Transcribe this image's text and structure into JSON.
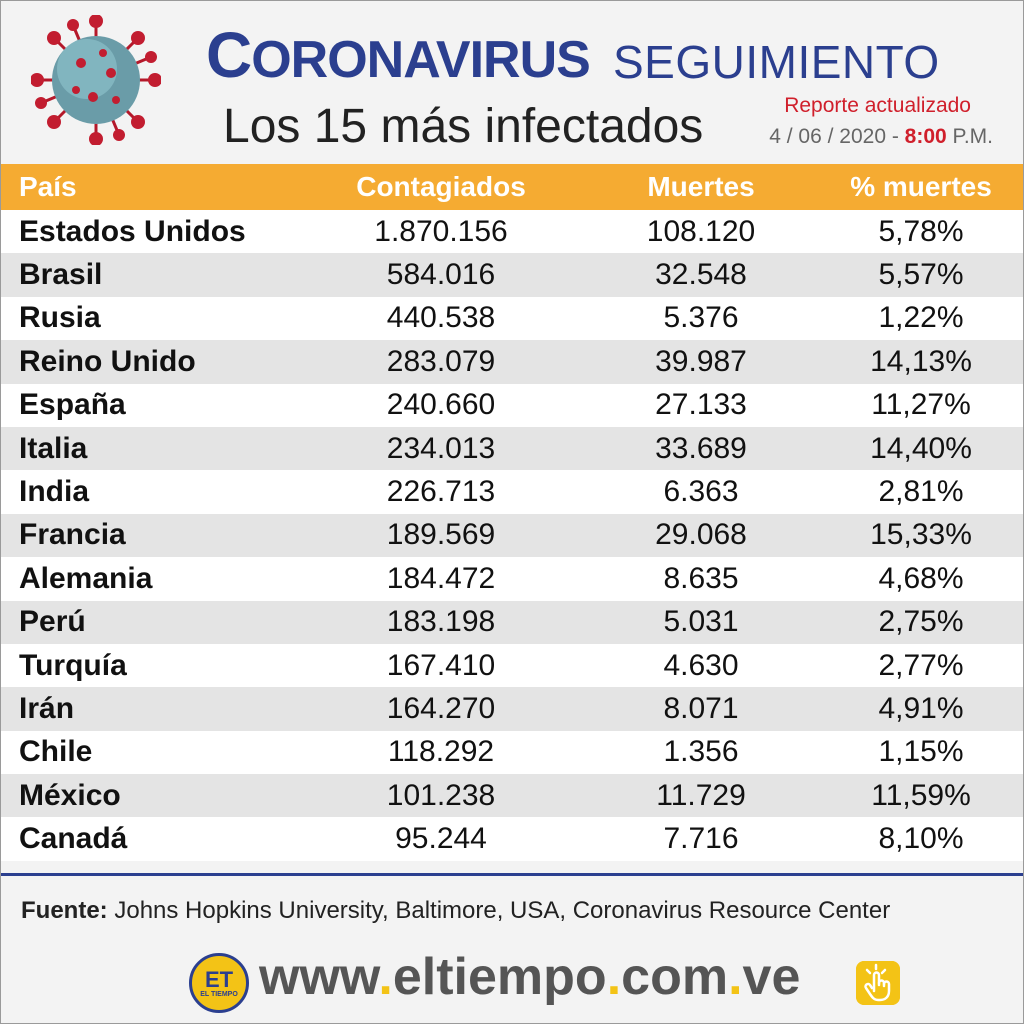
{
  "header": {
    "title_first_letter": "C",
    "title_rest": "ORONAVIRUS",
    "title_second": "SEGUIMIENTO",
    "subtitle": "Los 15 más infectados",
    "report_label": "Reporte actualizado",
    "report_date": "4 / 06 / 2020 - ",
    "report_time": "8:00",
    "report_ampm": " P.M."
  },
  "table": {
    "headers": [
      "País",
      "Contagiados",
      "Muertes",
      "% muertes"
    ],
    "rows": [
      [
        "Estados Unidos",
        "1.870.156",
        "108.120",
        "5,78%"
      ],
      [
        "Brasil",
        "584.016",
        "32.548",
        "5,57%"
      ],
      [
        "Rusia",
        "440.538",
        "5.376",
        "1,22%"
      ],
      [
        "Reino Unido",
        "283.079",
        "39.987",
        "14,13%"
      ],
      [
        "España",
        "240.660",
        "27.133",
        "11,27%"
      ],
      [
        "Italia",
        "234.013",
        "33.689",
        "14,40%"
      ],
      [
        "India",
        "226.713",
        "6.363",
        "2,81%"
      ],
      [
        "Francia",
        "189.569",
        "29.068",
        "15,33%"
      ],
      [
        "Alemania",
        "184.472",
        "8.635",
        "4,68%"
      ],
      [
        "Perú",
        "183.198",
        "5.031",
        "2,75%"
      ],
      [
        "Turquía",
        "167.410",
        "4.630",
        "2,77%"
      ],
      [
        "Irán",
        "164.270",
        "8.071",
        "4,91%"
      ],
      [
        "Chile",
        "118.292",
        "1.356",
        "1,15%"
      ],
      [
        "México",
        "101.238",
        "11.729",
        "11,59%"
      ],
      [
        "Canadá",
        "95.244",
        "7.716",
        "8,10%"
      ]
    ]
  },
  "source": {
    "label": "Fuente:",
    "text": " Johns Hopkins University, Baltimore, USA, Coronavirus Resource Center"
  },
  "footer": {
    "logo_text": "ET",
    "logo_small": "EL TIEMPO",
    "website_parts": [
      "www",
      ".",
      "eltiempo",
      ".",
      "com",
      ".",
      "ve"
    ]
  },
  "colors": {
    "brand_blue": "#2b3f8f",
    "header_orange": "#f5ab32",
    "accent_red": "#d01f2b",
    "logo_yellow": "#f3c316"
  },
  "icons": {
    "virus": "coronavirus-icon",
    "click": "hand-click-icon"
  }
}
